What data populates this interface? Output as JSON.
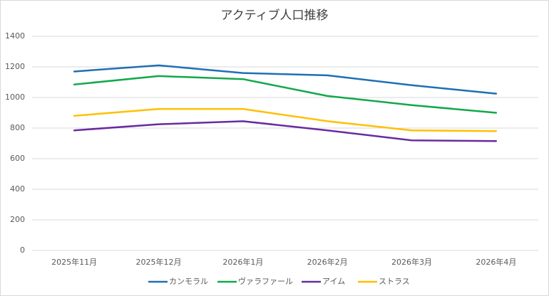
{
  "chart_data": {
    "type": "line",
    "title": "アクティブ人口推移",
    "categories": [
      "2025年11月",
      "2025年12月",
      "2026年1月",
      "2026年2月",
      "2026年3月",
      "2026年4月"
    ],
    "series": [
      {
        "name": "カンモラル",
        "color": "#1f6fb5",
        "values": [
          1170,
          1210,
          1160,
          1145,
          1080,
          1025
        ]
      },
      {
        "name": "ヴァラファール",
        "color": "#12a84a",
        "values": [
          1085,
          1140,
          1120,
          1010,
          950,
          900
        ]
      },
      {
        "name": "アイム",
        "color": "#6a2aa0",
        "values": [
          785,
          825,
          845,
          785,
          720,
          715
        ]
      },
      {
        "name": "ストラス",
        "color": "#ffc000",
        "values": [
          880,
          925,
          925,
          845,
          785,
          780
        ]
      }
    ],
    "ylim": [
      0,
      1400
    ],
    "yticks": [
      0,
      200,
      400,
      600,
      800,
      1000,
      1200,
      1400
    ],
    "grid": true,
    "legend": "bottom"
  }
}
